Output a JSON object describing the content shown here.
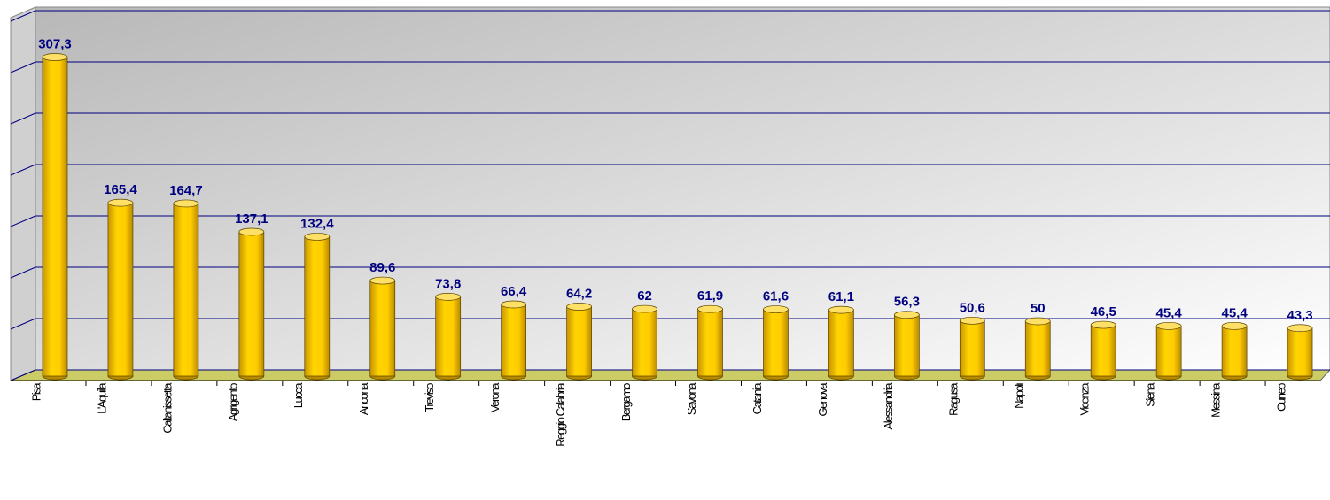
{
  "chart_data": {
    "type": "bar",
    "categories": [
      "Pisa",
      "L'Aquila",
      "Caltanissetta",
      "Agrigento",
      "Lucca",
      "Ancona",
      "Treviso",
      "Verona",
      "Reggio Calabria",
      "Bergamo",
      "Savona",
      "Catania",
      "Genova",
      "Alessandria",
      "Ragusa",
      "Napoli",
      "Vicenza",
      "Siena",
      "Messina",
      "Cuneo"
    ],
    "values": [
      307.3,
      165.4,
      164.7,
      137.1,
      132.4,
      89.6,
      73.8,
      66.4,
      64.2,
      62,
      61.9,
      61.6,
      61.1,
      56.3,
      50.6,
      50,
      46.5,
      45.4,
      45.4,
      43.3
    ],
    "value_labels": [
      "307,3",
      "165,4",
      "164,7",
      "137,1",
      "132,4",
      "89,6",
      "73,8",
      "66,4",
      "64,2",
      "62",
      "61,9",
      "61,6",
      "61,1",
      "56,3",
      "50,6",
      "50",
      "46,5",
      "45,4",
      "45,4",
      "43,3"
    ],
    "color": "#ffcc00",
    "ylim": [
      0,
      350
    ],
    "yticks": [
      0,
      50,
      100,
      150,
      200,
      250,
      300,
      350
    ],
    "grid": true
  }
}
